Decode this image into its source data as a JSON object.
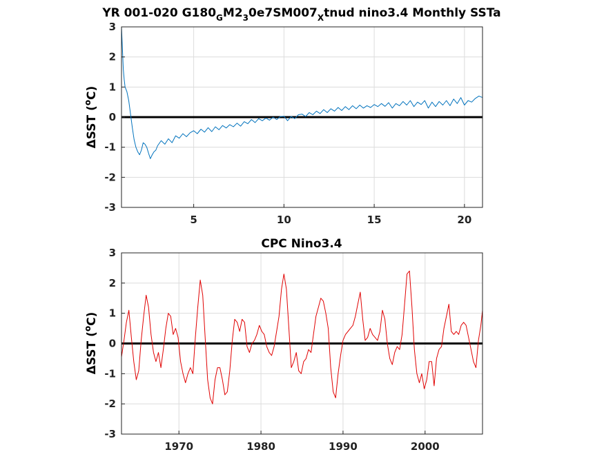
{
  "chart_data": [
    {
      "type": "line",
      "title": "YR 001-020 G180_GM2_30e7SM007_Xtnud nino3.4 Monthly SSTa",
      "title_parts": {
        "p1": "YR 001-020 G180",
        "s1": "G",
        "p2": "M2",
        "s2": "3",
        "p3": "0e7SM007",
        "s3": "X",
        "p4": "tnud nino3.4 Monthly SSTa"
      },
      "xlabel": "",
      "ylabel": "ΔSST (°C)",
      "ylabel_parts": {
        "pre": "ΔSST (",
        "sup": "o",
        "post": "C)"
      },
      "xlim": [
        1,
        21
      ],
      "ylim": [
        -3,
        3
      ],
      "xticks": [
        5,
        10,
        15,
        20
      ],
      "yticks": [
        -3,
        -2,
        -1,
        0,
        1,
        2,
        3
      ],
      "grid": true,
      "zero_line": true,
      "line_color": "#0072bd",
      "series": [
        {
          "x": [
            1.0,
            1.05,
            1.1,
            1.15,
            1.2,
            1.3,
            1.4,
            1.5,
            1.6,
            1.7,
            1.8,
            1.9,
            2.0,
            2.1,
            2.2,
            2.3,
            2.4,
            2.5,
            2.6,
            2.7,
            2.8,
            2.9,
            3.0,
            3.2,
            3.4,
            3.6,
            3.8,
            4.0,
            4.2,
            4.4,
            4.6,
            4.8,
            5.0,
            5.2,
            5.4,
            5.6,
            5.8,
            6.0,
            6.2,
            6.4,
            6.6,
            6.8,
            7.0,
            7.2,
            7.4,
            7.6,
            7.8,
            8.0,
            8.2,
            8.4,
            8.6,
            8.8,
            9.0,
            9.2,
            9.4,
            9.6,
            9.8,
            10.0,
            10.2,
            10.4,
            10.6,
            10.8,
            11.0,
            11.2,
            11.4,
            11.6,
            11.8,
            12.0,
            12.2,
            12.4,
            12.6,
            12.8,
            13.0,
            13.2,
            13.4,
            13.6,
            13.8,
            14.0,
            14.2,
            14.4,
            14.6,
            14.8,
            15.0,
            15.2,
            15.4,
            15.6,
            15.8,
            16.0,
            16.2,
            16.4,
            16.6,
            16.8,
            17.0,
            17.2,
            17.4,
            17.6,
            17.8,
            18.0,
            18.2,
            18.4,
            18.6,
            18.8,
            19.0,
            19.2,
            19.4,
            19.6,
            19.8,
            20.0,
            20.2,
            20.4,
            20.6,
            20.8,
            21.0
          ],
          "y": [
            3.0,
            2.3,
            1.6,
            1.25,
            1.0,
            0.85,
            0.55,
            0.1,
            -0.35,
            -0.75,
            -1.0,
            -1.15,
            -1.25,
            -1.1,
            -0.85,
            -0.9,
            -1.0,
            -1.2,
            -1.38,
            -1.25,
            -1.15,
            -1.1,
            -0.95,
            -0.78,
            -0.9,
            -0.72,
            -0.85,
            -0.62,
            -0.7,
            -0.55,
            -0.65,
            -0.52,
            -0.45,
            -0.55,
            -0.4,
            -0.5,
            -0.35,
            -0.48,
            -0.32,
            -0.42,
            -0.28,
            -0.36,
            -0.25,
            -0.32,
            -0.2,
            -0.3,
            -0.15,
            -0.22,
            -0.08,
            -0.18,
            -0.05,
            -0.12,
            -0.03,
            -0.1,
            0.0,
            -0.08,
            0.02,
            0.03,
            -0.12,
            0.02,
            -0.05,
            0.08,
            0.1,
            0.02,
            0.15,
            0.08,
            0.2,
            0.12,
            0.25,
            0.15,
            0.28,
            0.2,
            0.32,
            0.22,
            0.35,
            0.25,
            0.38,
            0.28,
            0.4,
            0.3,
            0.38,
            0.32,
            0.42,
            0.35,
            0.45,
            0.36,
            0.48,
            0.3,
            0.45,
            0.38,
            0.52,
            0.4,
            0.55,
            0.35,
            0.5,
            0.42,
            0.55,
            0.3,
            0.5,
            0.35,
            0.52,
            0.4,
            0.55,
            0.38,
            0.6,
            0.45,
            0.65,
            0.4,
            0.55,
            0.5,
            0.62,
            0.7,
            0.65
          ]
        }
      ]
    },
    {
      "type": "line",
      "title": "CPC Nino3.4",
      "xlabel": "",
      "ylabel": "ΔSST (°C)",
      "ylabel_parts": {
        "pre": "ΔSST (",
        "sup": "o",
        "post": "C)"
      },
      "xlim": [
        1963,
        2007
      ],
      "ylim": [
        -3,
        3
      ],
      "xticks": [
        1970,
        1980,
        1990,
        2000
      ],
      "yticks": [
        -3,
        -2,
        -1,
        0,
        1,
        2,
        3
      ],
      "grid": true,
      "zero_line": true,
      "line_color": "#e00000",
      "series": [
        {
          "x": [
            1963.0,
            1963.3,
            1963.6,
            1963.9,
            1964.2,
            1964.5,
            1964.8,
            1965.1,
            1965.4,
            1965.7,
            1966.0,
            1966.3,
            1966.6,
            1966.9,
            1967.2,
            1967.5,
            1967.8,
            1968.1,
            1968.4,
            1968.7,
            1969.0,
            1969.3,
            1969.6,
            1969.9,
            1970.2,
            1970.5,
            1970.8,
            1971.1,
            1971.4,
            1971.7,
            1972.0,
            1972.3,
            1972.6,
            1972.9,
            1973.2,
            1973.5,
            1973.8,
            1974.1,
            1974.4,
            1974.7,
            1975.0,
            1975.3,
            1975.6,
            1975.9,
            1976.2,
            1976.5,
            1976.8,
            1977.1,
            1977.4,
            1977.7,
            1978.0,
            1978.3,
            1978.6,
            1978.9,
            1979.2,
            1979.5,
            1979.8,
            1980.1,
            1980.4,
            1980.7,
            1981.0,
            1981.3,
            1981.6,
            1981.9,
            1982.2,
            1982.5,
            1982.8,
            1983.1,
            1983.4,
            1983.7,
            1984.0,
            1984.3,
            1984.6,
            1984.9,
            1985.2,
            1985.5,
            1985.8,
            1986.1,
            1986.4,
            1986.7,
            1987.0,
            1987.3,
            1987.6,
            1987.9,
            1988.2,
            1988.5,
            1988.8,
            1989.1,
            1989.4,
            1989.7,
            1990.0,
            1990.3,
            1990.6,
            1990.9,
            1991.2,
            1991.5,
            1991.8,
            1992.1,
            1992.4,
            1992.7,
            1993.0,
            1993.3,
            1993.6,
            1993.9,
            1994.2,
            1994.5,
            1994.8,
            1995.1,
            1995.4,
            1995.7,
            1996.0,
            1996.3,
            1996.6,
            1996.9,
            1997.2,
            1997.5,
            1997.8,
            1998.1,
            1998.4,
            1998.7,
            1999.0,
            1999.3,
            1999.6,
            1999.9,
            2000.2,
            2000.5,
            2000.8,
            2001.1,
            2001.4,
            2001.7,
            2002.0,
            2002.3,
            2002.6,
            2002.9,
            2003.2,
            2003.5,
            2003.8,
            2004.1,
            2004.4,
            2004.7,
            2005.0,
            2005.3,
            2005.6,
            2005.9,
            2006.2,
            2006.5,
            2006.8,
            2007.0
          ],
          "y": [
            -0.45,
            0.1,
            0.7,
            1.1,
            0.2,
            -0.6,
            -1.2,
            -0.9,
            0.1,
            0.9,
            1.6,
            1.2,
            0.3,
            -0.3,
            -0.6,
            -0.3,
            -0.8,
            -0.2,
            0.5,
            1.0,
            0.9,
            0.3,
            0.5,
            0.2,
            -0.6,
            -1.0,
            -1.3,
            -1.0,
            -0.8,
            -1.0,
            0.2,
            1.2,
            2.1,
            1.6,
            0.2,
            -1.2,
            -1.8,
            -2.0,
            -1.2,
            -0.8,
            -0.8,
            -1.2,
            -1.7,
            -1.6,
            -0.9,
            0.1,
            0.8,
            0.7,
            0.4,
            0.8,
            0.7,
            -0.1,
            -0.3,
            0.0,
            0.1,
            0.3,
            0.6,
            0.4,
            0.3,
            -0.1,
            -0.3,
            -0.4,
            -0.1,
            0.4,
            0.9,
            1.8,
            2.3,
            1.8,
            0.5,
            -0.8,
            -0.6,
            -0.3,
            -0.9,
            -1.0,
            -0.6,
            -0.5,
            -0.2,
            -0.3,
            0.3,
            0.9,
            1.2,
            1.5,
            1.4,
            1.0,
            0.5,
            -0.8,
            -1.6,
            -1.8,
            -1.0,
            -0.4,
            0.1,
            0.3,
            0.4,
            0.5,
            0.6,
            0.9,
            1.3,
            1.7,
            0.8,
            0.1,
            0.2,
            0.5,
            0.3,
            0.2,
            0.1,
            0.4,
            1.1,
            0.8,
            0.0,
            -0.5,
            -0.7,
            -0.3,
            -0.1,
            -0.2,
            0.3,
            1.3,
            2.3,
            2.4,
            1.2,
            -0.2,
            -1.0,
            -1.3,
            -1.0,
            -1.5,
            -1.2,
            -0.6,
            -0.6,
            -1.4,
            -0.5,
            -0.2,
            -0.1,
            0.5,
            0.9,
            1.3,
            0.4,
            0.3,
            0.4,
            0.3,
            0.6,
            0.7,
            0.6,
            0.2,
            -0.2,
            -0.6,
            -0.8,
            0.1,
            0.6,
            1.1
          ]
        }
      ]
    }
  ]
}
